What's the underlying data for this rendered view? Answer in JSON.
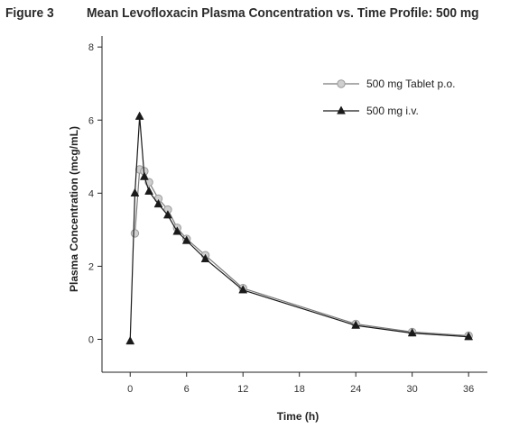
{
  "figure": {
    "label": "Figure 3",
    "title": "Mean Levofloxacin Plasma Concentration vs. Time Profile: 500 mg"
  },
  "chart_data": {
    "type": "line",
    "title": "Mean Levofloxacin Plasma Concentration vs. Time Profile: 500 mg",
    "xlabel": "Time (h)",
    "ylabel": "Plasma Concentration (mcg/mL)",
    "xlim": [
      -3,
      38
    ],
    "ylim": [
      -0.9,
      8.3
    ],
    "xticks": [
      0,
      6,
      12,
      18,
      24,
      30,
      36
    ],
    "yticks": [
      0,
      2,
      4,
      6,
      8
    ],
    "grid": false,
    "legend_position": "top-right",
    "series": [
      {
        "name": "500 mg Tablet p.o.",
        "marker": "circle",
        "color": "#7a7a7a",
        "marker_fill": "#cfcfcf",
        "x": [
          0.5,
          1,
          1.5,
          2,
          3,
          4,
          5,
          6,
          8,
          12,
          24,
          30,
          36
        ],
        "y": [
          2.9,
          4.65,
          4.6,
          4.3,
          3.85,
          3.55,
          3.05,
          2.75,
          2.3,
          1.4,
          0.42,
          0.2,
          0.1
        ]
      },
      {
        "name": "500 mg i.v.",
        "marker": "triangle",
        "color": "#1a1a1a",
        "marker_fill": "#1a1a1a",
        "x": [
          0,
          0.5,
          1,
          1.5,
          2,
          3,
          4,
          5,
          6,
          8,
          12,
          24,
          30,
          36
        ],
        "y": [
          -0.05,
          4.0,
          6.1,
          4.45,
          4.05,
          3.7,
          3.4,
          2.95,
          2.7,
          2.2,
          1.35,
          0.38,
          0.17,
          0.07
        ]
      }
    ]
  }
}
